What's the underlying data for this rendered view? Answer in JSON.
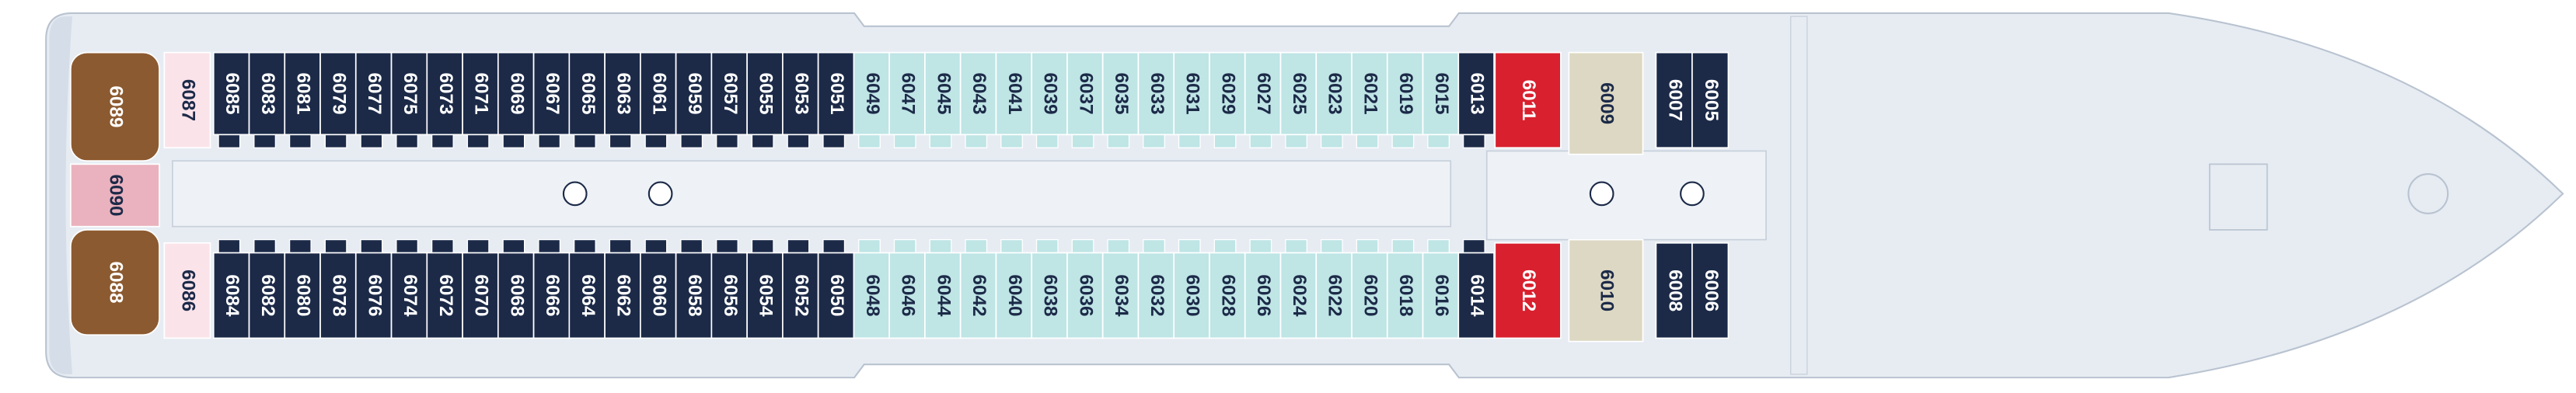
{
  "aft": [
    {
      "number": "6089",
      "color": "#8c5a30"
    },
    {
      "number": "6090",
      "color": "#eab2be"
    },
    {
      "number": "6088",
      "color": "#8c5a30"
    },
    {
      "number": "6087",
      "color": "#fbe3ea"
    },
    {
      "number": "6086",
      "color": "#fbe3ea"
    }
  ],
  "top_run": [
    {
      "number": "6085",
      "color": "#1c2a48"
    },
    {
      "number": "6083",
      "color": "#1c2a48"
    },
    {
      "number": "6081",
      "color": "#1c2a48"
    },
    {
      "number": "6079",
      "color": "#1c2a48"
    },
    {
      "number": "6077",
      "color": "#1c2a48"
    },
    {
      "number": "6075",
      "color": "#1c2a48"
    },
    {
      "number": "6073",
      "color": "#1c2a48"
    },
    {
      "number": "6071",
      "color": "#1c2a48"
    },
    {
      "number": "6069",
      "color": "#1c2a48"
    },
    {
      "number": "6067",
      "color": "#1c2a48"
    },
    {
      "number": "6065",
      "color": "#1c2a48"
    },
    {
      "number": "6063",
      "color": "#1c2a48"
    },
    {
      "number": "6061",
      "color": "#1c2a48"
    },
    {
      "number": "6059",
      "color": "#1c2a48"
    },
    {
      "number": "6057",
      "color": "#1c2a48"
    },
    {
      "number": "6055",
      "color": "#1c2a48"
    },
    {
      "number": "6053",
      "color": "#1c2a48"
    },
    {
      "number": "6051",
      "color": "#1c2a48"
    },
    {
      "number": "6049",
      "color": "#bfe5e5"
    },
    {
      "number": "6047",
      "color": "#bfe5e5"
    },
    {
      "number": "6045",
      "color": "#bfe5e5"
    },
    {
      "number": "6043",
      "color": "#bfe5e5"
    },
    {
      "number": "6041",
      "color": "#bfe5e5"
    },
    {
      "number": "6039",
      "color": "#bfe5e5"
    },
    {
      "number": "6037",
      "color": "#bfe5e5"
    },
    {
      "number": "6035",
      "color": "#bfe5e5"
    },
    {
      "number": "6033",
      "color": "#bfe5e5"
    },
    {
      "number": "6031",
      "color": "#bfe5e5"
    },
    {
      "number": "6029",
      "color": "#bfe5e5"
    },
    {
      "number": "6027",
      "color": "#bfe5e5"
    },
    {
      "number": "6025",
      "color": "#bfe5e5"
    },
    {
      "number": "6023",
      "color": "#bfe5e5"
    },
    {
      "number": "6021",
      "color": "#bfe5e5"
    },
    {
      "number": "6019",
      "color": "#bfe5e5"
    },
    {
      "number": "6015",
      "color": "#bfe5e5"
    },
    {
      "number": "6013",
      "color": "#1c2a48"
    }
  ],
  "bottom_run": [
    {
      "number": "6084",
      "color": "#1c2a48"
    },
    {
      "number": "6082",
      "color": "#1c2a48"
    },
    {
      "number": "6080",
      "color": "#1c2a48"
    },
    {
      "number": "6078",
      "color": "#1c2a48"
    },
    {
      "number": "6076",
      "color": "#1c2a48"
    },
    {
      "number": "6074",
      "color": "#1c2a48"
    },
    {
      "number": "6072",
      "color": "#1c2a48"
    },
    {
      "number": "6070",
      "color": "#1c2a48"
    },
    {
      "number": "6068",
      "color": "#1c2a48"
    },
    {
      "number": "6066",
      "color": "#1c2a48"
    },
    {
      "number": "6064",
      "color": "#1c2a48"
    },
    {
      "number": "6062",
      "color": "#1c2a48"
    },
    {
      "number": "6060",
      "color": "#1c2a48"
    },
    {
      "number": "6058",
      "color": "#1c2a48"
    },
    {
      "number": "6056",
      "color": "#1c2a48"
    },
    {
      "number": "6054",
      "color": "#1c2a48"
    },
    {
      "number": "6052",
      "color": "#1c2a48"
    },
    {
      "number": "6050",
      "color": "#1c2a48"
    },
    {
      "number": "6048",
      "color": "#bfe5e5"
    },
    {
      "number": "6046",
      "color": "#bfe5e5"
    },
    {
      "number": "6044",
      "color": "#bfe5e5"
    },
    {
      "number": "6042",
      "color": "#bfe5e5"
    },
    {
      "number": "6040",
      "color": "#bfe5e5"
    },
    {
      "number": "6038",
      "color": "#bfe5e5"
    },
    {
      "number": "6036",
      "color": "#bfe5e5"
    },
    {
      "number": "6034",
      "color": "#bfe5e5"
    },
    {
      "number": "6032",
      "color": "#bfe5e5"
    },
    {
      "number": "6030",
      "color": "#bfe5e5"
    },
    {
      "number": "6028",
      "color": "#bfe5e5"
    },
    {
      "number": "6026",
      "color": "#bfe5e5"
    },
    {
      "number": "6024",
      "color": "#bfe5e5"
    },
    {
      "number": "6022",
      "color": "#bfe5e5"
    },
    {
      "number": "6020",
      "color": "#bfe5e5"
    },
    {
      "number": "6018",
      "color": "#bfe5e5"
    },
    {
      "number": "6016",
      "color": "#bfe5e5"
    },
    {
      "number": "6014",
      "color": "#1c2a48"
    }
  ],
  "forward": [
    {
      "number": "6011",
      "color": "#d8202e"
    },
    {
      "number": "6012",
      "color": "#d8202e"
    },
    {
      "number": "6009",
      "color": "#ddd8c3"
    },
    {
      "number": "6010",
      "color": "#ddd8c3"
    },
    {
      "number": "6007",
      "color": "#1c2a48"
    },
    {
      "number": "6005",
      "color": "#1c2a48"
    },
    {
      "number": "6008",
      "color": "#1c2a48"
    },
    {
      "number": "6006",
      "color": "#1c2a48"
    }
  ]
}
